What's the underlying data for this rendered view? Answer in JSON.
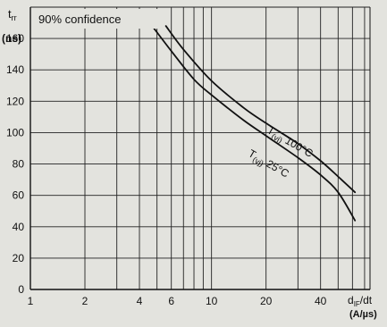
{
  "chart_data": {
    "type": "line",
    "title": "",
    "annotation": "90% confidence",
    "y_axis": {
      "label_main": "t",
      "label_sub": "rr",
      "unit": "(ns)",
      "ylim": [
        0,
        180
      ],
      "ticks": [
        0,
        20,
        40,
        60,
        80,
        100,
        120,
        140,
        160
      ]
    },
    "x_axis": {
      "scale": "log",
      "label_main": "d",
      "label_sub": "IF",
      "label_suffix": "/dt",
      "unit": "(A/µs)",
      "xlim": [
        1,
        75
      ],
      "ticks": [
        1,
        2,
        4,
        6,
        10,
        20,
        40
      ]
    },
    "grid": true,
    "grid_minor_x": [
      3,
      5,
      7,
      8,
      9,
      30,
      50,
      60,
      70
    ],
    "series": [
      {
        "name_main": "T",
        "name_sub": "(vj)",
        "name_value": " 100°C",
        "x": [
          5.6,
          7,
          10,
          15,
          20,
          30,
          40,
          50,
          62
        ],
        "y": [
          168,
          153,
          133,
          116,
          106,
          93,
          82,
          72,
          62
        ]
      },
      {
        "name_main": "T",
        "name_sub": "(vj)",
        "name_value": " 25°C",
        "x": [
          4.7,
          6,
          8,
          10,
          15,
          20,
          30,
          40,
          50,
          62
        ],
        "y": [
          168,
          152,
          134,
          124,
          108,
          98,
          84,
          73,
          62,
          44
        ]
      }
    ]
  }
}
